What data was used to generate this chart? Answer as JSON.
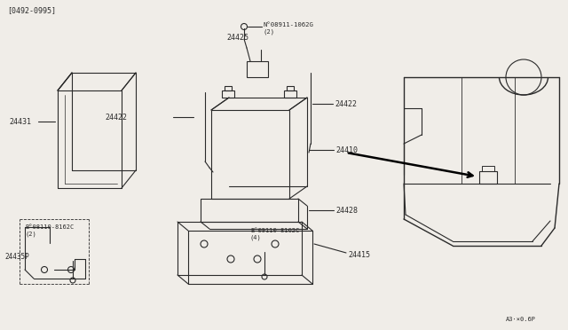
{
  "bg_color": "#f0ede8",
  "line_color": "#2a2a2a",
  "fig_width": 6.4,
  "fig_height": 3.72,
  "dpi": 100,
  "title_tag": "[0492-0995]",
  "bottom_right_tag": "A3·×0.6P",
  "parts": {
    "battery_label": "24410",
    "tray_label": "24428",
    "cover_label": "24431",
    "cable_left_label": "24422",
    "cable_right_label": "24422",
    "connector_label": "24425",
    "nut_label": "N°08911-1062G\n(2)",
    "bolt_b1_label": "B°08110-8162C\n(2)",
    "bolt_b2_label": "B°09110-8162C\n(4)",
    "bracket_label": "24435P",
    "base_label": "24415"
  }
}
